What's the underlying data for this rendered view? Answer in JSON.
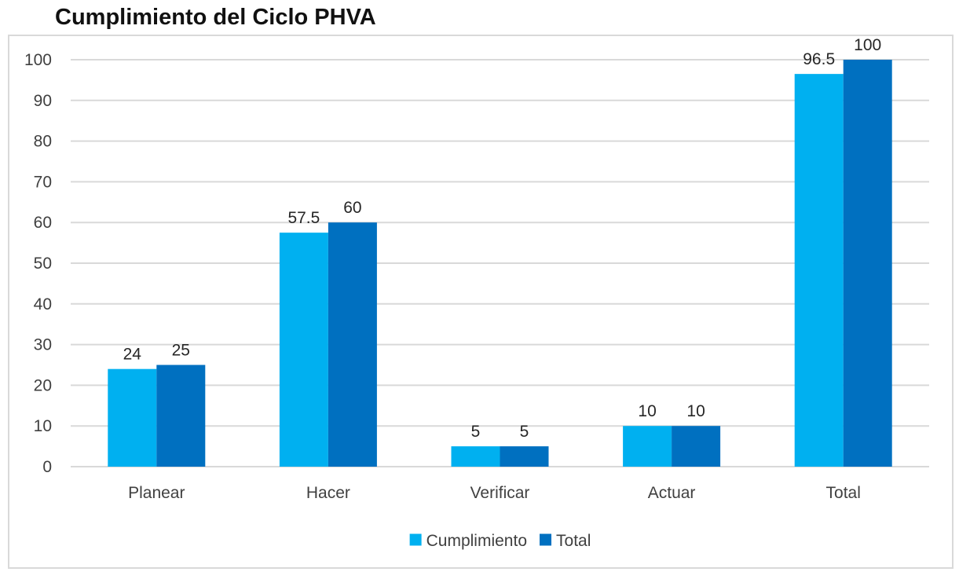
{
  "chart_data": {
    "type": "bar",
    "title": "Cumplimiento del Ciclo PHVA",
    "xlabel": "",
    "ylabel": "",
    "categories": [
      "Planear",
      "Hacer",
      "Verificar",
      "Actuar",
      "Total"
    ],
    "series": [
      {
        "name": "Cumplimiento",
        "color": "#00b0f0",
        "values": [
          24,
          57.5,
          5,
          10,
          96.5
        ]
      },
      {
        "name": "Total",
        "color": "#0070c0",
        "values": [
          25,
          60,
          5,
          10,
          100
        ]
      }
    ],
    "ylim": [
      0,
      100
    ],
    "yticks": [
      0,
      10,
      20,
      30,
      40,
      50,
      60,
      70,
      80,
      90,
      100
    ],
    "grid": true,
    "legend_position": "bottom",
    "data_labels": true
  }
}
